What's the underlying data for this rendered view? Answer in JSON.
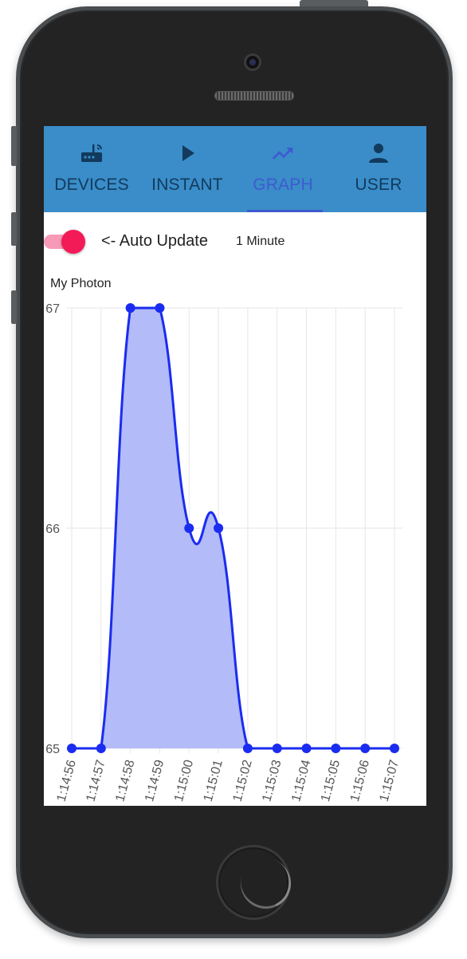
{
  "tabs": [
    {
      "label": "DEVICES",
      "icon": "router-icon",
      "active": false
    },
    {
      "label": "INSTANT",
      "icon": "play-icon",
      "active": false
    },
    {
      "label": "GRAPH",
      "icon": "trending-up-icon",
      "active": true
    },
    {
      "label": "USER",
      "icon": "person-icon",
      "active": false
    }
  ],
  "controls": {
    "auto_update_label": "<- Auto Update",
    "auto_update_on": true,
    "interval_label": "1 Minute"
  },
  "chart_title": "My Photon",
  "colors": {
    "tab_bar": "#3a8dc8",
    "tab_text": "#123a5c",
    "tab_active": "#3f5ad1",
    "toggle_knob": "#f31a58",
    "toggle_track": "#f79ab8",
    "line": "#1a2cf0",
    "fill": "#b3bbf8"
  },
  "chart_data": {
    "type": "area",
    "categories": [
      "1:14:56",
      "1:14:57",
      "1:14:58",
      "1:14:59",
      "1:15:00",
      "1:15:01",
      "1:15:02",
      "1:15:03",
      "1:15:04",
      "1:15:05",
      "1:15:06",
      "1:15:07"
    ],
    "values": [
      65,
      65,
      67,
      67,
      66,
      66,
      65,
      65,
      65,
      65,
      65,
      65
    ],
    "ylim": [
      65,
      67
    ],
    "yticks": [
      "67",
      "66",
      "65"
    ],
    "grid": true
  }
}
